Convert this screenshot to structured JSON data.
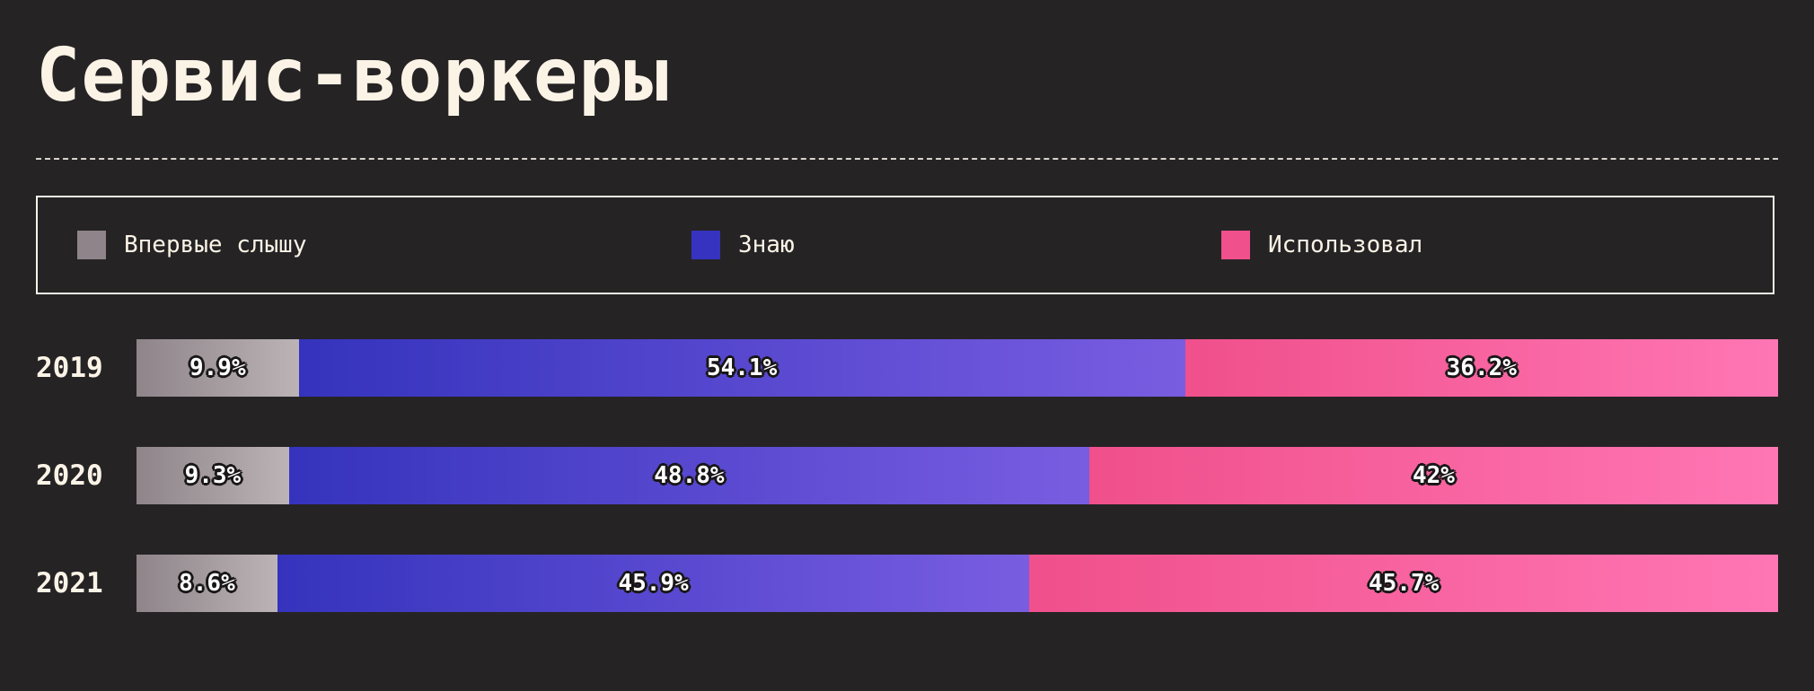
{
  "header": {
    "title": "Сервис-воркеры"
  },
  "legend": {
    "items": [
      {
        "label": "Впервые слышу",
        "color": "#8e8489"
      },
      {
        "label": "Знаю",
        "color": "#3633c0"
      },
      {
        "label": "Использовал",
        "color": "#f0508b"
      }
    ]
  },
  "colors": {
    "background": "#262325",
    "text": "#fbf4e6",
    "never_heard_gradient": [
      "#8e8489",
      "#bbb3b6"
    ],
    "know_gradient": [
      "#3533bd",
      "#795de1"
    ],
    "used_gradient": [
      "#f0508b",
      "#ff76b4"
    ]
  },
  "chart_data": {
    "type": "bar",
    "orientation": "horizontal",
    "stacked": true,
    "title": "Сервис-воркеры",
    "categories": [
      "2019",
      "2020",
      "2021"
    ],
    "series": [
      {
        "name": "Впервые слышу",
        "values": [
          9.9,
          9.3,
          8.6
        ],
        "labels": [
          "9.9%",
          "9.3%",
          "8.6%"
        ]
      },
      {
        "name": "Знаю",
        "values": [
          54.1,
          48.8,
          45.9
        ],
        "labels": [
          "54.1%",
          "48.8%",
          "45.9%"
        ]
      },
      {
        "name": "Использовал",
        "values": [
          36.2,
          42,
          45.7
        ],
        "labels": [
          "36.2%",
          "42%",
          "45.7%"
        ]
      }
    ],
    "unit": "%",
    "legend_position": "top",
    "grid": false
  }
}
